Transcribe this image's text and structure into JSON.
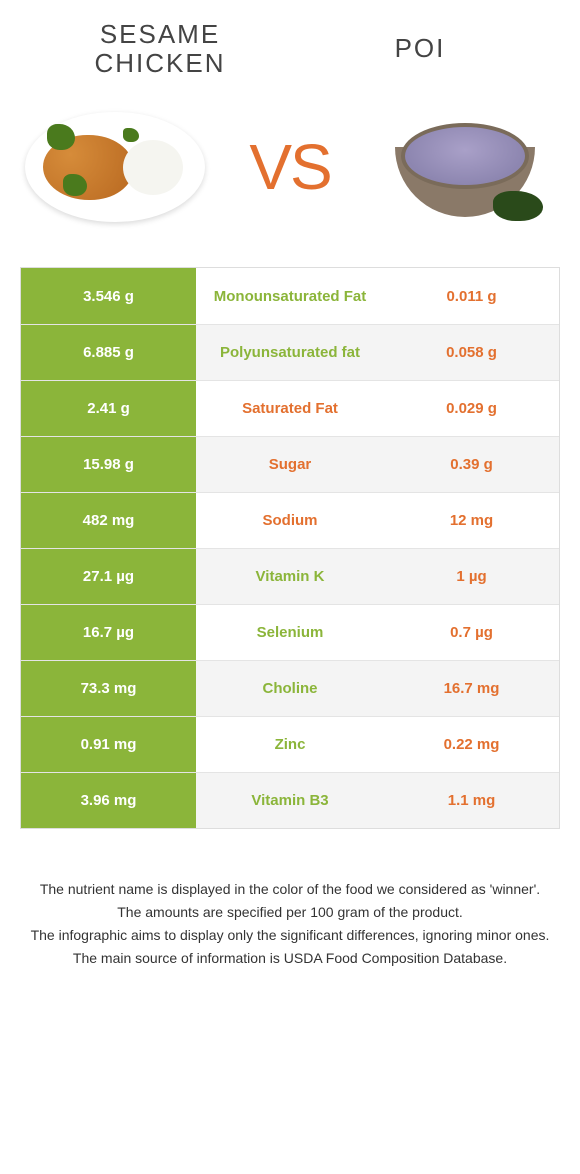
{
  "colors": {
    "food1": "#8bb53a",
    "food2": "#e3702f",
    "row_odd": "#ffffff",
    "row_even": "#f4f4f4"
  },
  "header": {
    "food1_title": "Sesame Chicken",
    "food2_title": "Poi",
    "vs": "VS"
  },
  "nutrients": [
    {
      "label": "Monounsaturated Fat",
      "left": "3.546 g",
      "right": "0.011 g",
      "winner": "food1"
    },
    {
      "label": "Polyunsaturated fat",
      "left": "6.885 g",
      "right": "0.058 g",
      "winner": "food1"
    },
    {
      "label": "Saturated Fat",
      "left": "2.41 g",
      "right": "0.029 g",
      "winner": "food2"
    },
    {
      "label": "Sugar",
      "left": "15.98 g",
      "right": "0.39 g",
      "winner": "food2"
    },
    {
      "label": "Sodium",
      "left": "482 mg",
      "right": "12 mg",
      "winner": "food2"
    },
    {
      "label": "Vitamin K",
      "left": "27.1 µg",
      "right": "1 µg",
      "winner": "food1"
    },
    {
      "label": "Selenium",
      "left": "16.7 µg",
      "right": "0.7 µg",
      "winner": "food1"
    },
    {
      "label": "Choline",
      "left": "73.3 mg",
      "right": "16.7 mg",
      "winner": "food1"
    },
    {
      "label": "Zinc",
      "left": "0.91 mg",
      "right": "0.22 mg",
      "winner": "food1"
    },
    {
      "label": "Vitamin B3",
      "left": "3.96 mg",
      "right": "1.1 mg",
      "winner": "food1"
    }
  ],
  "footer": {
    "line1": "The nutrient name is displayed in the color of the food we considered as 'winner'.",
    "line2": "The amounts are specified per 100 gram of the product.",
    "line3": "The infographic aims to display only the significant differences, ignoring minor ones.",
    "line4": "The main source of information is USDA Food Composition Database."
  }
}
